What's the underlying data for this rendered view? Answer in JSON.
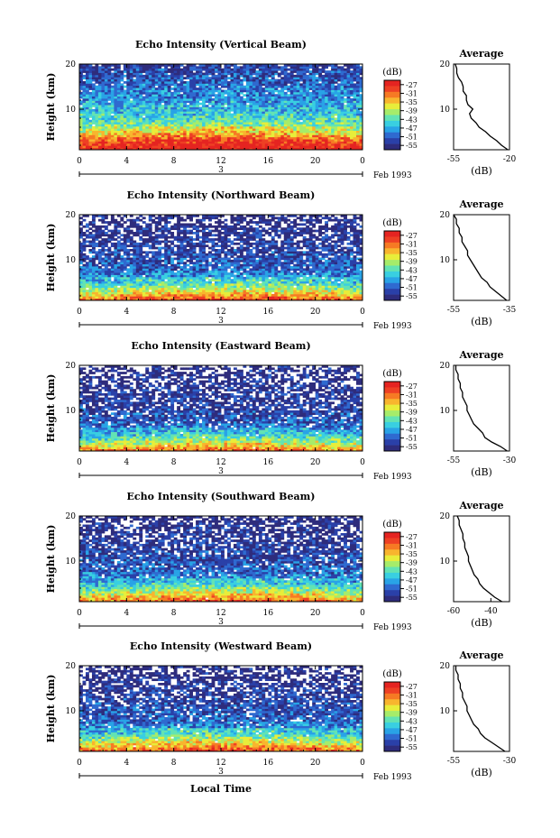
{
  "figure": {
    "xlabel": "Local Time",
    "colorbar_unit": "(dB)",
    "colorbar_ticks": [
      "-27",
      "-31",
      "-35",
      "-39",
      "-43",
      "-47",
      "-51",
      "-55"
    ],
    "colorbar_range": [
      -57,
      -25
    ],
    "colorbar_colors": [
      "#2e2c7c",
      "#2a40a8",
      "#2f6ad0",
      "#29a3e6",
      "#39cfe1",
      "#63e3b3",
      "#a6ec6a",
      "#e8ed3a",
      "#f8b52e",
      "#f67a24",
      "#ee4024",
      "#e52421"
    ],
    "date_label": "Feb 1993",
    "day_label": "3",
    "time_ticks": [
      "0",
      "4",
      "8",
      "12",
      "16",
      "20",
      "0"
    ],
    "height_ticks": [
      "20",
      "10"
    ],
    "ylabel": "Height (km)",
    "avg_title": "Average",
    "avg_ylabel_ticks": [
      "20",
      "10"
    ],
    "avg_xunit": "(dB)"
  },
  "chart_data": [
    {
      "type": "heatmap",
      "title": "Echo Intensity (Vertical Beam)",
      "xlabel": "Local Time",
      "ylabel": "Height (km)",
      "xlim": [
        0,
        24
      ],
      "ylim": [
        1,
        20
      ],
      "xticks": [
        "0",
        "4",
        "8",
        "12",
        "16",
        "20",
        "0"
      ],
      "yticks": [
        20,
        10
      ],
      "value_range": [
        -57,
        -25
      ],
      "profile": [
        [
          1,
          -27
        ],
        [
          3,
          -30
        ],
        [
          5,
          -38
        ],
        [
          8,
          -44
        ],
        [
          12,
          -48
        ],
        [
          16,
          -51
        ],
        [
          20,
          -54
        ]
      ],
      "gap_fraction": [
        [
          1,
          0
        ],
        [
          5,
          0
        ],
        [
          10,
          0.02
        ],
        [
          15,
          0.06
        ],
        [
          20,
          0.1
        ]
      ],
      "average_profile": {
        "title": "Average",
        "xlabel": "(dB)",
        "xlim": [
          -55,
          -20
        ],
        "xticks": [
          "-55",
          "-20"
        ],
        "yticks": [
          20,
          10
        ],
        "height": [
          1,
          2,
          3,
          4,
          5,
          6,
          7,
          8,
          9,
          10,
          11,
          12,
          13,
          14,
          15,
          16,
          17,
          18,
          19,
          20
        ],
        "db": [
          -21,
          -25,
          -28,
          -32,
          -35,
          -39,
          -41,
          -44,
          -45,
          -43,
          -46,
          -47,
          -47,
          -49,
          -49,
          -50,
          -52,
          -53,
          -53,
          -54
        ]
      }
    },
    {
      "type": "heatmap",
      "title": "Echo Intensity (Northward Beam)",
      "xlabel": "Local Time",
      "ylabel": "Height (km)",
      "xlim": [
        0,
        24
      ],
      "ylim": [
        1,
        20
      ],
      "xticks": [
        "0",
        "4",
        "8",
        "12",
        "16",
        "20",
        "0"
      ],
      "yticks": [
        20,
        10
      ],
      "value_range": [
        -57,
        -25
      ],
      "profile": [
        [
          1,
          -31
        ],
        [
          3,
          -39
        ],
        [
          5,
          -46
        ],
        [
          8,
          -51
        ],
        [
          12,
          -53
        ],
        [
          16,
          -55
        ],
        [
          20,
          -56
        ]
      ],
      "gap_fraction": [
        [
          1,
          0
        ],
        [
          5,
          0.02
        ],
        [
          10,
          0.12
        ],
        [
          15,
          0.3
        ],
        [
          20,
          0.42
        ]
      ],
      "average_profile": {
        "title": "Average",
        "xlabel": "(dB)",
        "xlim": [
          -55,
          -35
        ],
        "xticks": [
          "-55",
          "-35"
        ],
        "yticks": [
          20,
          10
        ],
        "height": [
          1,
          2,
          3,
          4,
          5,
          6,
          7,
          8,
          9,
          10,
          11,
          12,
          13,
          14,
          15,
          16,
          17,
          18,
          19,
          20
        ],
        "db": [
          -36,
          -38,
          -40,
          -42,
          -43,
          -45,
          -46,
          -47,
          -48,
          -49,
          -50,
          -50,
          -51,
          -52,
          -52,
          -53,
          -53,
          -54,
          -54,
          -55
        ]
      }
    },
    {
      "type": "heatmap",
      "title": "Echo Intensity (Eastward Beam)",
      "xlabel": "Local Time",
      "ylabel": "Height (km)",
      "xlim": [
        0,
        24
      ],
      "ylim": [
        1,
        20
      ],
      "xticks": [
        "0",
        "4",
        "8",
        "12",
        "16",
        "20",
        "0"
      ],
      "yticks": [
        20,
        10
      ],
      "value_range": [
        -57,
        -25
      ],
      "profile": [
        [
          1,
          -33
        ],
        [
          3,
          -41
        ],
        [
          5,
          -48
        ],
        [
          8,
          -52
        ],
        [
          12,
          -54
        ],
        [
          16,
          -55
        ],
        [
          20,
          -56
        ]
      ],
      "gap_fraction": [
        [
          1,
          0
        ],
        [
          5,
          0.03
        ],
        [
          10,
          0.18
        ],
        [
          15,
          0.35
        ],
        [
          20,
          0.48
        ]
      ],
      "average_profile": {
        "title": "Average",
        "xlabel": "(dB)",
        "xlim": [
          -55,
          -30
        ],
        "xticks": [
          "-55",
          "-30"
        ],
        "yticks": [
          20,
          10
        ],
        "height": [
          1,
          2,
          3,
          4,
          5,
          6,
          7,
          8,
          9,
          10,
          11,
          12,
          13,
          14,
          15,
          16,
          17,
          18,
          19,
          20
        ],
        "db": [
          -31,
          -34,
          -38,
          -41,
          -42,
          -44,
          -46,
          -47,
          -48,
          -49,
          -49,
          -50,
          -51,
          -51,
          -52,
          -52,
          -53,
          -53,
          -54,
          -54
        ]
      }
    },
    {
      "type": "heatmap",
      "title": "Echo Intensity (Southward Beam)",
      "xlabel": "Local Time",
      "ylabel": "Height (km)",
      "xlim": [
        0,
        24
      ],
      "ylim": [
        1,
        20
      ],
      "xticks": [
        "0",
        "4",
        "8",
        "12",
        "16",
        "20",
        "0"
      ],
      "yticks": [
        20,
        10
      ],
      "value_range": [
        -57,
        -25
      ],
      "profile": [
        [
          1,
          -32
        ],
        [
          3,
          -40
        ],
        [
          5,
          -47
        ],
        [
          8,
          -51
        ],
        [
          12,
          -53
        ],
        [
          16,
          -55
        ],
        [
          20,
          -56
        ]
      ],
      "gap_fraction": [
        [
          1,
          0
        ],
        [
          5,
          0.02
        ],
        [
          10,
          0.14
        ],
        [
          15,
          0.28
        ],
        [
          20,
          0.4
        ]
      ],
      "average_profile": {
        "title": "Average",
        "xlabel": "(dB)",
        "xlim": [
          -60,
          -30
        ],
        "xticks": [
          "-60",
          "-40"
        ],
        "yticks": [
          20,
          10
        ],
        "height": [
          1,
          2,
          3,
          4,
          5,
          6,
          7,
          8,
          9,
          10,
          11,
          12,
          13,
          14,
          15,
          16,
          17,
          18,
          19,
          20
        ],
        "db": [
          -34,
          -38,
          -41,
          -44,
          -46,
          -47,
          -49,
          -50,
          -51,
          -52,
          -52,
          -53,
          -54,
          -54,
          -55,
          -55,
          -56,
          -57,
          -57,
          -58
        ]
      }
    },
    {
      "type": "heatmap",
      "title": "Echo Intensity (Westward Beam)",
      "xlabel": "Local Time",
      "ylabel": "Height (km)",
      "xlim": [
        0,
        24
      ],
      "ylim": [
        1,
        20
      ],
      "xticks": [
        "0",
        "4",
        "8",
        "12",
        "16",
        "20",
        "0"
      ],
      "yticks": [
        20,
        10
      ],
      "value_range": [
        -57,
        -25
      ],
      "profile": [
        [
          1,
          -31
        ],
        [
          3,
          -39
        ],
        [
          5,
          -46
        ],
        [
          8,
          -51
        ],
        [
          12,
          -53
        ],
        [
          16,
          -55
        ],
        [
          20,
          -56
        ]
      ],
      "gap_fraction": [
        [
          1,
          0
        ],
        [
          5,
          0.02
        ],
        [
          10,
          0.15
        ],
        [
          15,
          0.32
        ],
        [
          20,
          0.45
        ]
      ],
      "average_profile": {
        "title": "Average",
        "xlabel": "(dB)",
        "xlim": [
          -55,
          -30
        ],
        "xticks": [
          "-55",
          "-30"
        ],
        "yticks": [
          20,
          10
        ],
        "height": [
          1,
          2,
          3,
          4,
          5,
          6,
          7,
          8,
          9,
          10,
          11,
          12,
          13,
          14,
          15,
          16,
          17,
          18,
          19,
          20
        ],
        "db": [
          -32,
          -35,
          -38,
          -41,
          -43,
          -44,
          -46,
          -47,
          -48,
          -49,
          -49,
          -50,
          -51,
          -51,
          -52,
          -52,
          -53,
          -53,
          -54,
          -54
        ]
      }
    }
  ]
}
